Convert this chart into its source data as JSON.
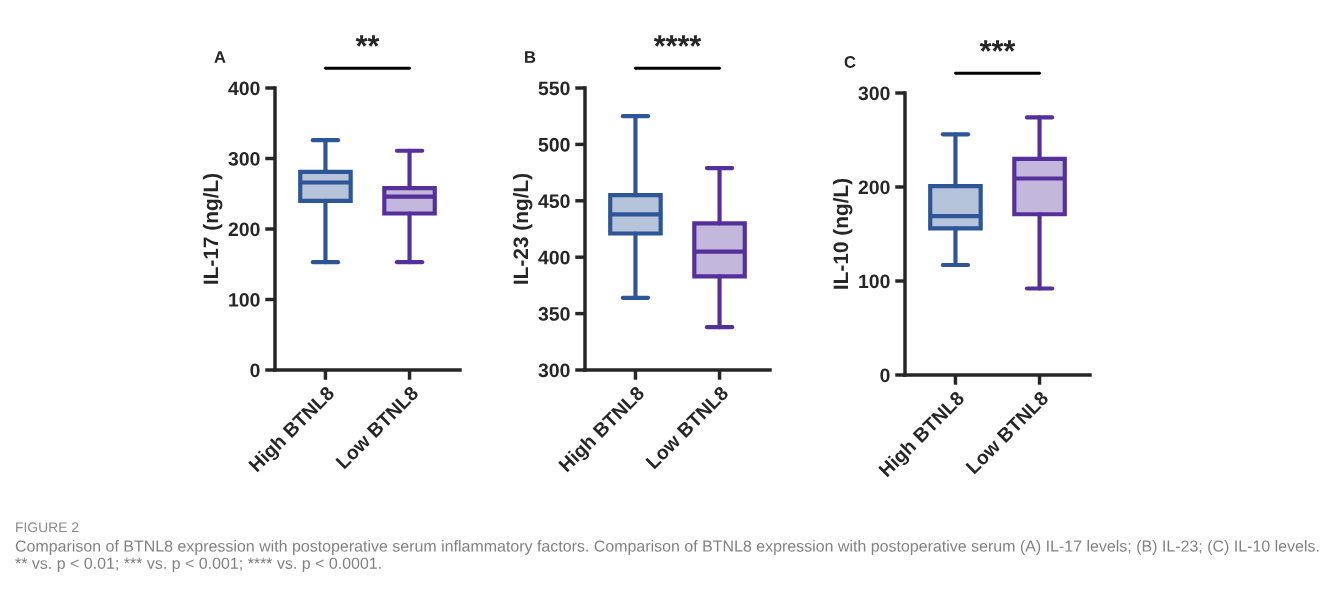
{
  "chart_data": [
    {
      "type": "box",
      "title": "A",
      "ylabel": "IL-17 (ng/L)",
      "categories": [
        "High BTNL8",
        "Low BTNL8"
      ],
      "colors": [
        "#2d5597",
        "#55309a"
      ],
      "boxes": [
        {
          "low": 153,
          "q1": 240,
          "median": 266,
          "q3": 281,
          "high": 326
        },
        {
          "low": 153,
          "q1": 222,
          "median": 246,
          "q3": 258,
          "high": 311
        }
      ],
      "ylim": [
        0,
        400
      ],
      "yticks": [
        0,
        100,
        200,
        300,
        400
      ],
      "grid": false,
      "annotations": [
        "**"
      ]
    },
    {
      "type": "box",
      "title": "B",
      "ylabel": "IL-23 (ng/L)",
      "categories": [
        "High BTNL8",
        "Low BTNL8"
      ],
      "colors": [
        "#2d5597",
        "#55309a"
      ],
      "boxes": [
        {
          "low": 364,
          "q1": 421,
          "median": 438,
          "q3": 455,
          "high": 525
        },
        {
          "low": 338,
          "q1": 383,
          "median": 405,
          "q3": 430,
          "high": 479
        }
      ],
      "ylim": [
        300,
        550
      ],
      "yticks": [
        300,
        350,
        400,
        450,
        500,
        550
      ],
      "grid": false,
      "annotations": [
        "****"
      ]
    },
    {
      "type": "box",
      "title": "C",
      "ylabel": "IL-10 (ng/L)",
      "categories": [
        "High BTNL8",
        "Low BTNL8"
      ],
      "colors": [
        "#2d5597",
        "#55309a"
      ],
      "boxes": [
        {
          "low": 117,
          "q1": 156,
          "median": 169,
          "q3": 201,
          "high": 256
        },
        {
          "low": 92,
          "q1": 171,
          "median": 209,
          "q3": 230,
          "high": 274
        }
      ],
      "ylim": [
        0,
        300
      ],
      "yticks": [
        0,
        100,
        200,
        300
      ],
      "grid": false,
      "annotations": [
        "***"
      ]
    },
    {
      "type": "other",
      "title": "FIGURE 2",
      "annotations": [
        "Comparison of BTNL8 expression with postoperative serum inflammatory factors. Comparison of BTNL8 expression with postoperative serum (A) IL-17 levels; (B) IL-23; (C) IL-10 levels. ** vs. p < 0.01; *** vs. p < 0.001; **** vs. p < 0.0001."
      ]
    }
  ]
}
